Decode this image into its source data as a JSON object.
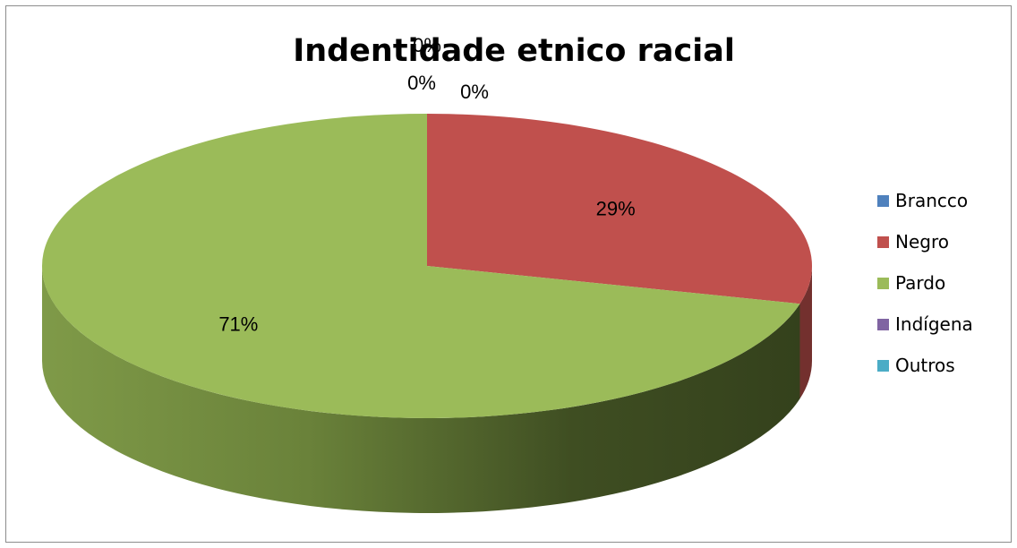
{
  "chart_data": {
    "type": "pie",
    "style": "3d",
    "title": "Indentidade etnico racial",
    "categories": [
      "Brancco",
      "Negro",
      "Pardo",
      "Indígena",
      "Outros"
    ],
    "values": [
      0,
      29,
      71,
      0,
      0
    ],
    "data_labels": [
      "0%",
      "29%",
      "71%",
      "0%",
      "0%"
    ],
    "colors": [
      "#4f81bd",
      "#c0504d",
      "#9bbb59",
      "#8064a2",
      "#4bacc6"
    ],
    "legend_position": "right"
  }
}
